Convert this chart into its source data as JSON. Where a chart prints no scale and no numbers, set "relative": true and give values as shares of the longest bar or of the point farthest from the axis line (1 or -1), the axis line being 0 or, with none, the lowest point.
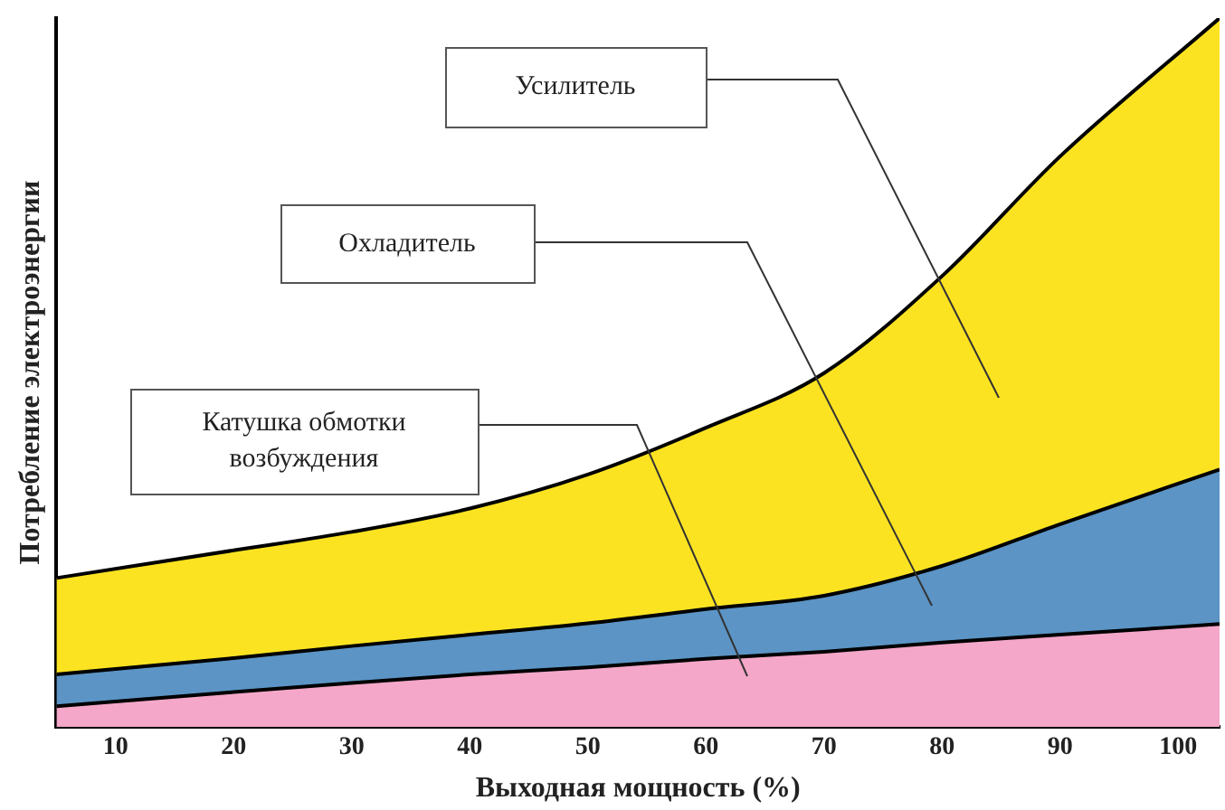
{
  "chart_data": {
    "type": "area",
    "stacked": true,
    "relative": true,
    "xlabel": "Выходная мощность (%)",
    "ylabel": "Потребление электроэнергии",
    "x": [
      5,
      20,
      30,
      40,
      50,
      60,
      70,
      80,
      90,
      103.5
    ],
    "xlim": [
      5,
      103.5
    ],
    "xticks": [
      10,
      20,
      30,
      40,
      50,
      60,
      70,
      80,
      90,
      100
    ],
    "grid": false,
    "legend": false,
    "series": [
      {
        "color": "#f4a7c8",
        "values": [
          0.029,
          0.049,
          0.062,
          0.074,
          0.084,
          0.096,
          0.106,
          0.119,
          0.13,
          0.145
        ]
      },
      {
        "color": "#5b94c5",
        "values": [
          0.045,
          0.048,
          0.052,
          0.056,
          0.062,
          0.07,
          0.079,
          0.108,
          0.156,
          0.218
        ]
      },
      {
        "color": "#fbe321",
        "values": [
          0.136,
          0.152,
          0.161,
          0.178,
          0.21,
          0.256,
          0.314,
          0.409,
          0.519,
          0.637
        ]
      }
    ],
    "annotations": [
      "Усилитель",
      "Охладитель",
      "Катушка обмотки возбуждения"
    ]
  }
}
